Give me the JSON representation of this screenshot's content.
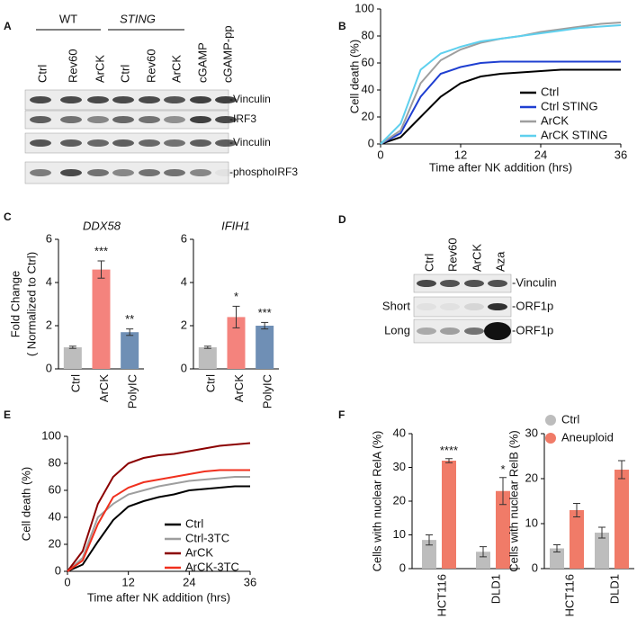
{
  "panel_letters": [
    "A",
    "B",
    "C",
    "D",
    "E",
    "F"
  ],
  "blot_a": {
    "groups": [
      "WT",
      "STING"
    ],
    "lanes": [
      "Ctrl",
      "Rev60",
      "ArCK",
      "Ctrl",
      "Rev60",
      "ArCK",
      "cGAMP",
      "cGAMP-pp"
    ],
    "rows": [
      "-Vinculin",
      "-IRF3",
      "-Vinculin",
      "-phosphoIRF3"
    ]
  },
  "blot_d": {
    "lanes": [
      "Ctrl",
      "Rev60",
      "ArCK",
      "Aza"
    ],
    "rows": [
      {
        "right": "-Vinculin"
      },
      {
        "left": "Short",
        "right": "-ORF1p"
      },
      {
        "left": "Long",
        "right": "-ORF1p"
      }
    ]
  },
  "chart_data": [
    {
      "type": "line",
      "xlabel": "Time after NK addition (hrs)",
      "ylabel": "Cell death (%)",
      "x": [
        0,
        3,
        6,
        9,
        12,
        15,
        18,
        21,
        24,
        27,
        30,
        33,
        36
      ],
      "xlim": [
        0,
        36
      ],
      "xticks": [
        0,
        12,
        24,
        36
      ],
      "ylim": [
        0,
        100
      ],
      "yticks": [
        0,
        20,
        40,
        60,
        80,
        100
      ],
      "legend": "lower right",
      "series": [
        {
          "name": "Ctrl",
          "color": "#000000",
          "values": [
            0,
            5,
            20,
            35,
            45,
            50,
            52,
            53,
            54,
            55,
            55,
            55,
            55
          ]
        },
        {
          "name": "Ctrl STING",
          "color": "#1f3fd1",
          "values": [
            0,
            8,
            35,
            52,
            57,
            60,
            61,
            61,
            61,
            61,
            61,
            61,
            61
          ]
        },
        {
          "name": "ArCK",
          "color": "#9e9e9e",
          "values": [
            0,
            10,
            45,
            62,
            70,
            75,
            78,
            80,
            83,
            85,
            87,
            89,
            90
          ]
        },
        {
          "name": "ArCK STING",
          "color": "#5fd0ee",
          "values": [
            0,
            15,
            55,
            67,
            72,
            76,
            78,
            80,
            82,
            84,
            86,
            87,
            88
          ]
        }
      ]
    },
    {
      "type": "bar",
      "title": "DDX58",
      "ylabel": [
        "Fold Change",
        "( Normalized to Ctrl)"
      ],
      "categories": [
        "Ctrl",
        "ArCK",
        "PolyIC"
      ],
      "values": [
        1,
        4.6,
        1.7
      ],
      "errors": [
        0.05,
        0.4,
        0.15
      ],
      "annotations": [
        null,
        "***",
        "**"
      ],
      "colors": [
        "#bdbdbd",
        "#f4837d",
        "#6f8fb5"
      ],
      "ylim": [
        0,
        6
      ],
      "yticks": [
        0,
        2,
        4,
        6
      ]
    },
    {
      "type": "bar",
      "title": "IFIH1",
      "categories": [
        "Ctrl",
        "ArCK",
        "PolyIC"
      ],
      "values": [
        1,
        2.4,
        2.0
      ],
      "errors": [
        0.05,
        0.5,
        0.15
      ],
      "annotations": [
        null,
        "*",
        "***"
      ],
      "colors": [
        "#bdbdbd",
        "#f4837d",
        "#6f8fb5"
      ],
      "ylim": [
        0,
        6
      ],
      "yticks": [
        0,
        2,
        4,
        6
      ]
    },
    {
      "type": "line",
      "xlabel": "Time after NK addition (hrs)",
      "ylabel": "Cell death (%)",
      "x": [
        0,
        3,
        6,
        9,
        12,
        15,
        18,
        21,
        24,
        27,
        30,
        33,
        36
      ],
      "xlim": [
        0,
        36
      ],
      "xticks": [
        0,
        12,
        24,
        36
      ],
      "ylim": [
        0,
        100
      ],
      "yticks": [
        0,
        20,
        40,
        60,
        80,
        100
      ],
      "legend": "lower right",
      "series": [
        {
          "name": "Ctrl",
          "color": "#000000",
          "values": [
            0,
            5,
            22,
            38,
            48,
            52,
            55,
            57,
            60,
            61,
            62,
            63,
            63
          ]
        },
        {
          "name": "Ctrl-3TC",
          "color": "#9e9e9e",
          "values": [
            0,
            10,
            40,
            50,
            57,
            60,
            63,
            65,
            67,
            68,
            69,
            70,
            70
          ]
        },
        {
          "name": "ArCK",
          "color": "#8b0000",
          "values": [
            0,
            15,
            50,
            70,
            80,
            84,
            86,
            87,
            89,
            91,
            93,
            94,
            95
          ]
        },
        {
          "name": "ArCK-3TC",
          "color": "#f0301e",
          "values": [
            0,
            8,
            35,
            55,
            62,
            66,
            68,
            70,
            72,
            74,
            75,
            75,
            75
          ]
        }
      ]
    },
    {
      "type": "grouped_bar",
      "ylabel": "Cells with nuclear RelA (%)",
      "categories": [
        "HCT116",
        "DLD1"
      ],
      "ylim": [
        0,
        40
      ],
      "yticks": [
        0,
        10,
        20,
        30,
        40
      ],
      "series": [
        {
          "color": "#bdbdbd",
          "values": [
            8.5,
            5
          ],
          "errors": [
            1.5,
            1.5
          ]
        },
        {
          "color": "#f07b68",
          "values": [
            32,
            23
          ],
          "errors": [
            0.6,
            4
          ],
          "annotations": [
            "****",
            "*"
          ]
        }
      ]
    },
    {
      "type": "grouped_bar",
      "ylabel": "Cells with nuclear RelB (%)",
      "categories": [
        "HCT116",
        "DLD1"
      ],
      "ylim": [
        0,
        30
      ],
      "yticks": [
        0,
        10,
        20,
        30
      ],
      "legend": "upper left",
      "series": [
        {
          "name": "Ctrl",
          "color": "#bdbdbd",
          "values": [
            4.5,
            8
          ],
          "errors": [
            0.8,
            1.2
          ]
        },
        {
          "name": "Aneuploid",
          "color": "#f07b68",
          "values": [
            13,
            22
          ],
          "errors": [
            1.5,
            2
          ]
        }
      ],
      "annotations": [
        null,
        null
      ]
    }
  ]
}
